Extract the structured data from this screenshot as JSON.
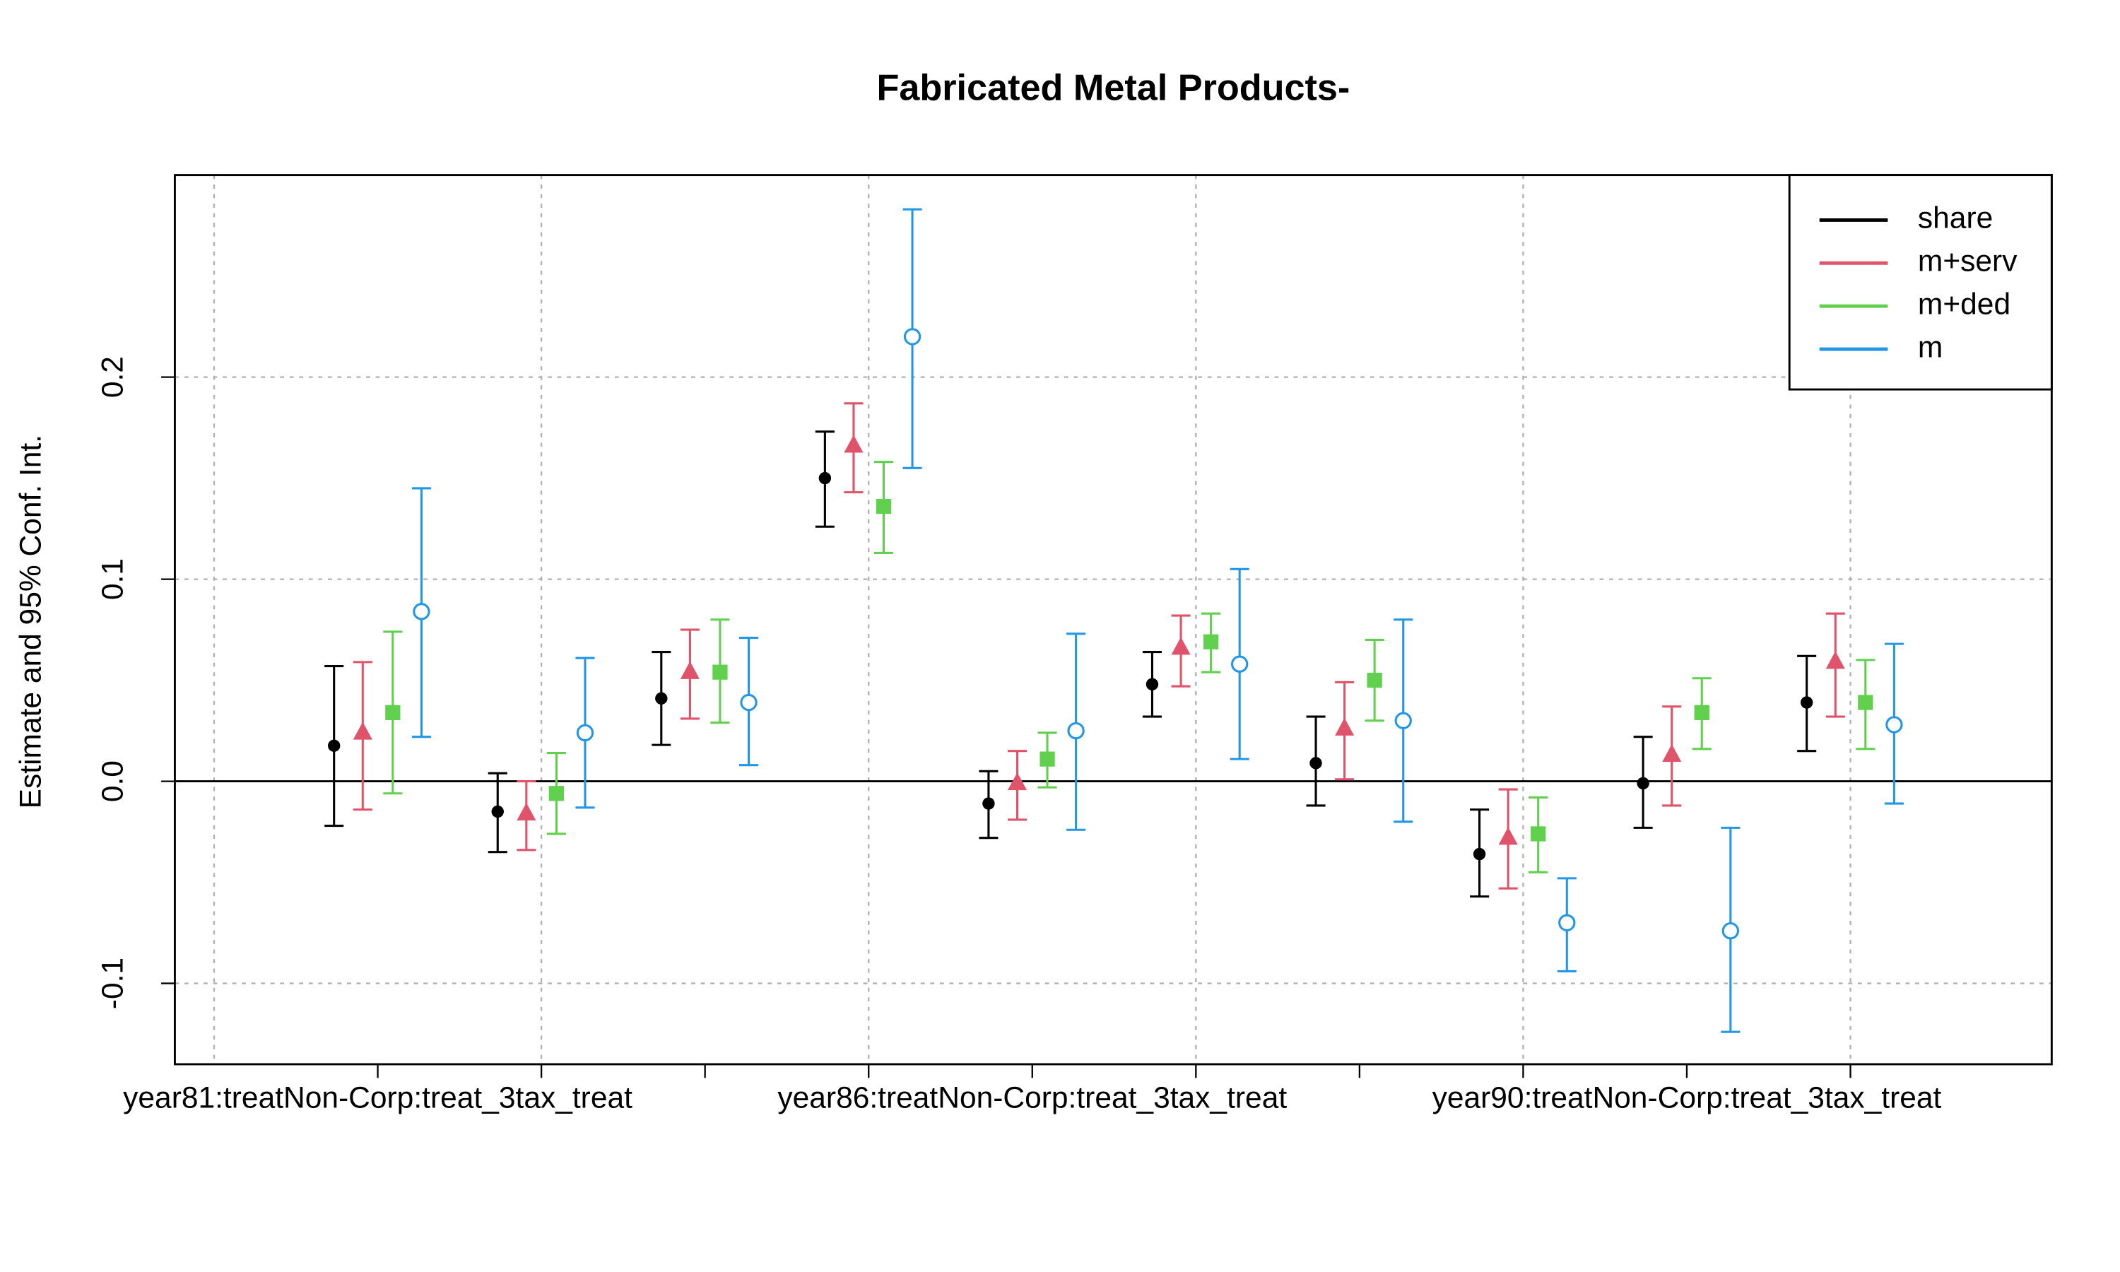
{
  "chart_data": {
    "type": "coefplot",
    "title": "Fabricated Metal Products-",
    "ylabel": "Estimate and 95% Conf. Int.",
    "x": [
      1,
      2,
      3,
      4,
      5,
      6,
      7,
      8,
      9,
      10
    ],
    "categories": [
      "year81:treatNon-Corp:treat_3tax_treat",
      null,
      null,
      null,
      "year86:treatNon-Corp:treat_3tax_treat",
      null,
      null,
      null,
      "year90:treatNon-Corp:treat_3tax_treat",
      null
    ],
    "xlim": [
      -0.24,
      11.23
    ],
    "xgrid": [
      0,
      2,
      4,
      6,
      8,
      10
    ],
    "ylim": [
      -0.14,
      0.3
    ],
    "yticks": [
      -0.1,
      {
        "value": 0,
        "label": "0.0"
      },
      0.1,
      0.2
    ],
    "grid": true,
    "reference_line": 0,
    "legend_position": "top-right",
    "series": [
      {
        "name": "share",
        "color": "#000000",
        "marker": "filled-circle",
        "values": [
          0.0176,
          -0.015,
          0.041,
          0.15,
          -0.011,
          0.048,
          0.009,
          -0.036,
          -0.001,
          0.039
        ],
        "lower": [
          -0.022,
          -0.035,
          0.018,
          0.126,
          -0.028,
          0.032,
          -0.012,
          -0.057,
          -0.023,
          0.015
        ],
        "upper": [
          0.057,
          0.004,
          0.064,
          0.173,
          0.005,
          0.064,
          0.032,
          -0.014,
          0.022,
          0.062
        ]
      },
      {
        "name": "m+serv",
        "color": "#DF536B",
        "marker": "filled-triangle",
        "values": [
          0.024,
          -0.016,
          0.054,
          0.166,
          -0.001,
          0.066,
          0.026,
          -0.028,
          0.013,
          0.059
        ],
        "lower": [
          -0.014,
          -0.034,
          0.031,
          0.143,
          -0.019,
          0.047,
          0.001,
          -0.053,
          -0.012,
          0.032
        ],
        "upper": [
          0.059,
          0.0,
          0.075,
          0.187,
          0.015,
          0.082,
          0.049,
          -0.004,
          0.037,
          0.083
        ]
      },
      {
        "name": "m+ded",
        "color": "#61D04F",
        "marker": "filled-square",
        "values": [
          0.034,
          -0.006,
          0.054,
          0.136,
          0.011,
          0.069,
          0.05,
          -0.026,
          0.034,
          0.039
        ],
        "lower": [
          -0.006,
          -0.026,
          0.029,
          0.113,
          -0.003,
          0.054,
          0.03,
          -0.045,
          0.016,
          0.016
        ],
        "upper": [
          0.074,
          0.014,
          0.08,
          0.158,
          0.024,
          0.083,
          0.07,
          -0.008,
          0.051,
          0.06
        ]
      },
      {
        "name": "m",
        "color": "#2297E6",
        "marker": "open-circle",
        "values": [
          0.084,
          0.024,
          0.039,
          0.22,
          0.025,
          0.058,
          0.03,
          -0.07,
          -0.074,
          0.028
        ],
        "lower": [
          0.022,
          -0.013,
          0.008,
          0.155,
          -0.024,
          0.011,
          -0.02,
          -0.094,
          -0.124,
          -0.011
        ],
        "upper": [
          0.145,
          0.061,
          0.071,
          0.283,
          0.073,
          0.105,
          0.08,
          -0.048,
          -0.023,
          0.068
        ]
      }
    ]
  }
}
